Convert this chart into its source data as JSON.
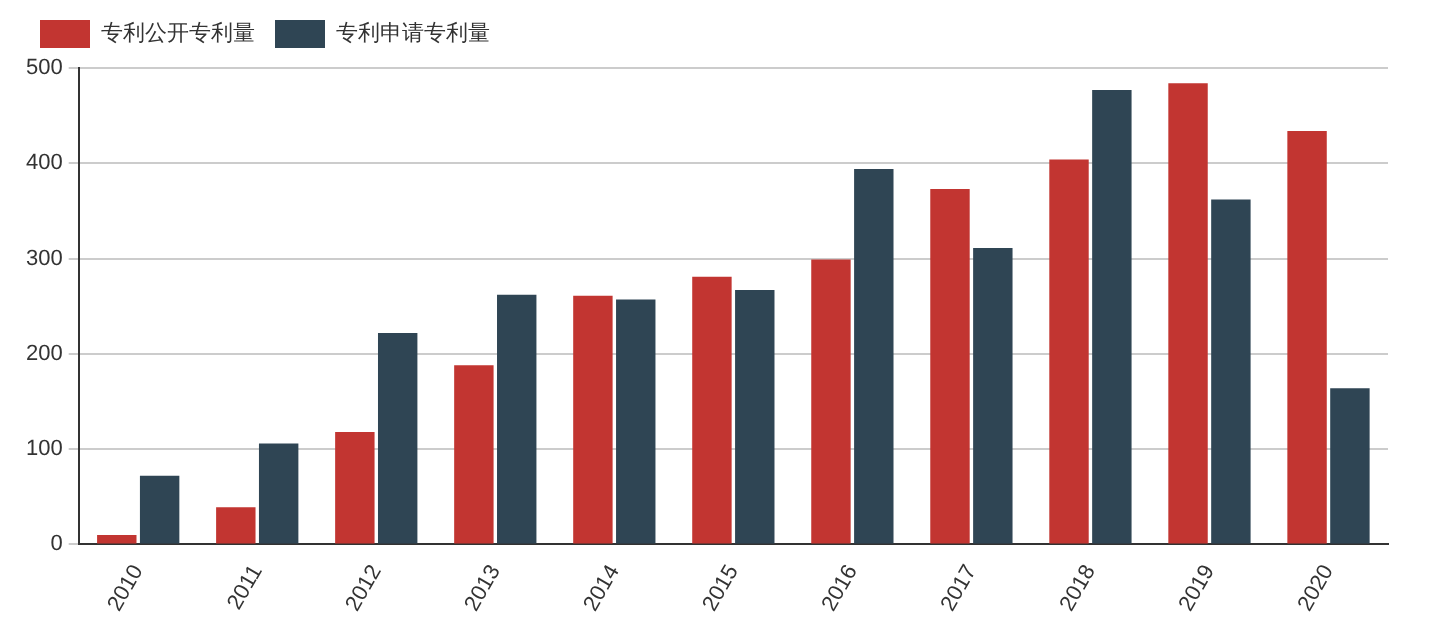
{
  "chart_data": {
    "type": "bar",
    "categories": [
      "2010",
      "2011",
      "2012",
      "2013",
      "2014",
      "2015",
      "2016",
      "2017",
      "2018",
      "2019",
      "2020"
    ],
    "series": [
      {
        "name": "专利公开专利量",
        "color": "#c23531",
        "values": [
          10,
          39,
          118,
          188,
          261,
          281,
          299,
          373,
          404,
          484,
          434
        ]
      },
      {
        "name": "专利申请专利量",
        "color": "#2f4554",
        "values": [
          72,
          106,
          222,
          262,
          257,
          267,
          394,
          311,
          477,
          362,
          164
        ]
      }
    ],
    "ylim": [
      0,
      500
    ],
    "yticks": [
      0,
      100,
      200,
      300,
      400,
      500
    ],
    "grid": "y",
    "legend": "top left"
  }
}
